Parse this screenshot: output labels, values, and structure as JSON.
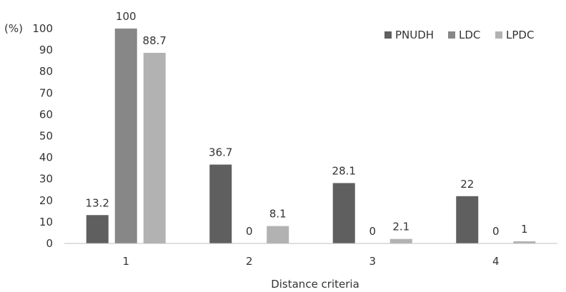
{
  "chart_data": {
    "type": "bar",
    "categories": [
      "1",
      "2",
      "3",
      "4"
    ],
    "series": [
      {
        "name": "PNUDH",
        "values": [
          13.2,
          36.7,
          28.1,
          22
        ],
        "color": "#5f5f5f"
      },
      {
        "name": "LDC",
        "values": [
          100,
          0,
          0,
          0
        ],
        "color": "#878787"
      },
      {
        "name": "LPDC",
        "values": [
          88.7,
          8.1,
          2.1,
          1
        ],
        "color": "#b2b2b2"
      }
    ],
    "data_labels": [
      [
        "13.2",
        "36.7",
        "28.1",
        "22"
      ],
      [
        "100",
        "0",
        "0",
        "0"
      ],
      [
        "88.7",
        "8.1",
        "2.1",
        "1"
      ]
    ],
    "xlabel": "Distance criteria",
    "ylabel": "(%)",
    "ylim": [
      0,
      100
    ],
    "yticks": [
      "0",
      "10",
      "20",
      "30",
      "40",
      "50",
      "60",
      "70",
      "80",
      "90",
      "100"
    ],
    "grid": false,
    "legend_position": "top-right"
  }
}
